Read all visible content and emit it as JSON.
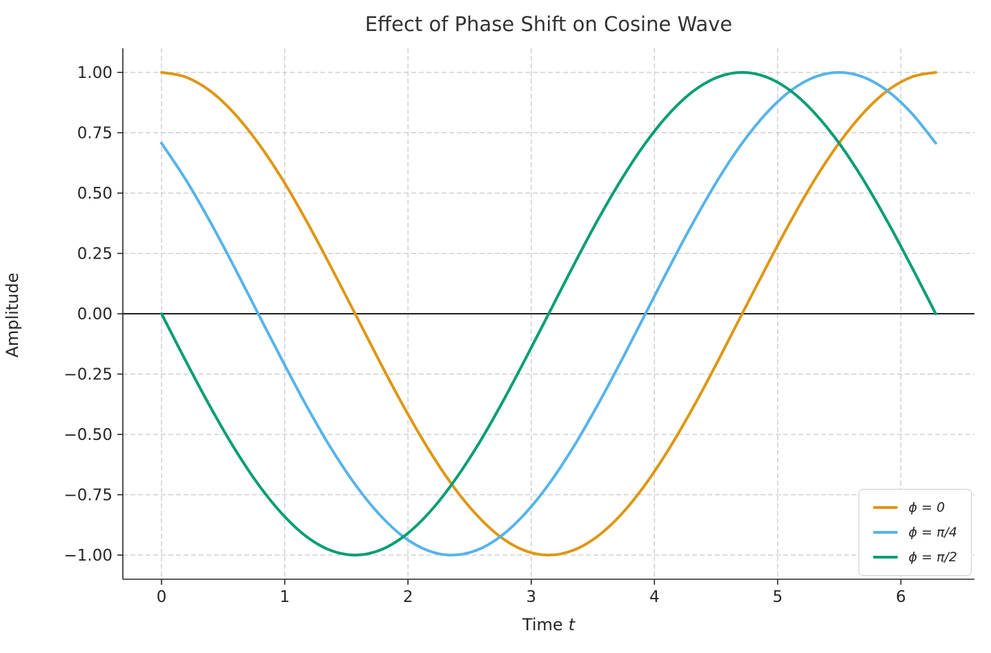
{
  "chart_data": {
    "type": "line",
    "title": "Effect of Phase Shift on Cosine Wave",
    "xlabel": "Time",
    "xlabel_var": "t",
    "ylabel": "Amplitude",
    "xlim": [
      -0.314,
      6.597
    ],
    "ylim": [
      -1.1,
      1.1
    ],
    "x_ticks": [
      0,
      1,
      2,
      3,
      4,
      5,
      6
    ],
    "x_tick_labels": [
      "0",
      "1",
      "2",
      "3",
      "4",
      "5",
      "6"
    ],
    "y_ticks": [
      -1.0,
      -0.75,
      -0.5,
      -0.25,
      0.0,
      0.25,
      0.5,
      0.75,
      1.0
    ],
    "y_tick_labels": [
      "−1.00",
      "−0.75",
      "−0.50",
      "−0.25",
      "0.00",
      "0.25",
      "0.50",
      "0.75",
      "1.00"
    ],
    "grid": "dashed",
    "grid_color": "#c8c8c8",
    "zero_line": true,
    "zero_line_color": "#000000",
    "legend_position": "lower right",
    "line_width": 4,
    "x": [
      0,
      0.196,
      0.393,
      0.589,
      0.785,
      0.982,
      1.178,
      1.374,
      1.571,
      1.767,
      1.963,
      2.16,
      2.356,
      2.553,
      2.749,
      2.945,
      3.142,
      3.338,
      3.534,
      3.731,
      3.927,
      4.123,
      4.32,
      4.516,
      4.712,
      4.909,
      5.105,
      5.301,
      5.498,
      5.694,
      5.89,
      6.087,
      6.283
    ],
    "series": [
      {
        "name": "ϕ = 0",
        "phase": "0",
        "color": "#DE9712",
        "values": [
          1.0,
          0.981,
          0.924,
          0.831,
          0.707,
          0.556,
          0.383,
          0.195,
          0.0,
          -0.195,
          -0.383,
          -0.556,
          -0.707,
          -0.831,
          -0.924,
          -0.981,
          -1.0,
          -0.981,
          -0.924,
          -0.831,
          -0.707,
          -0.556,
          -0.383,
          -0.195,
          0.0,
          0.195,
          0.383,
          0.556,
          0.707,
          0.831,
          0.924,
          0.981,
          1.0
        ]
      },
      {
        "name": "ϕ = π/4",
        "phase": "pi/4",
        "color": "#56B4E9",
        "values": [
          0.707,
          0.556,
          0.383,
          0.195,
          0.0,
          -0.195,
          -0.383,
          -0.556,
          -0.707,
          -0.831,
          -0.924,
          -0.981,
          -1.0,
          -0.981,
          -0.924,
          -0.831,
          -0.707,
          -0.556,
          -0.383,
          -0.195,
          0.0,
          0.195,
          0.383,
          0.556,
          0.707,
          0.831,
          0.924,
          0.981,
          1.0,
          0.981,
          0.924,
          0.831,
          0.707
        ]
      },
      {
        "name": "ϕ = π/2",
        "phase": "pi/2",
        "color": "#029E73",
        "values": [
          0.0,
          -0.195,
          -0.383,
          -0.556,
          -0.707,
          -0.831,
          -0.924,
          -0.981,
          -1.0,
          -0.981,
          -0.924,
          -0.831,
          -0.707,
          -0.556,
          -0.383,
          -0.195,
          0.0,
          0.195,
          0.383,
          0.556,
          0.707,
          0.831,
          0.924,
          0.981,
          1.0,
          0.981,
          0.924,
          0.831,
          0.707,
          0.556,
          0.383,
          0.195,
          0.0
        ]
      }
    ]
  }
}
